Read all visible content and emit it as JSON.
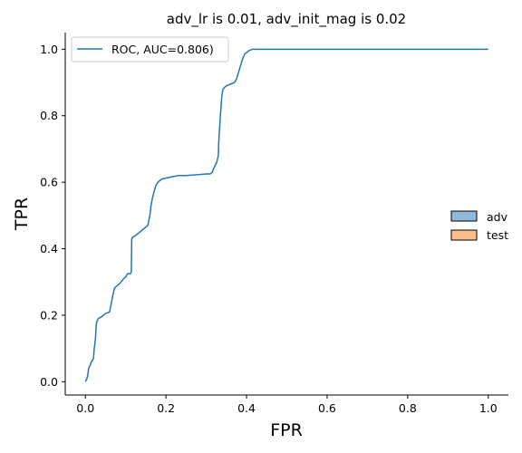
{
  "chart_data": {
    "type": "line",
    "title": "adv_lr is 0.01, adv_init_mag is 0.02",
    "xlabel": "FPR",
    "ylabel": "TPR",
    "xlim": [
      -0.05,
      1.05
    ],
    "ylim": [
      -0.04,
      1.05
    ],
    "xticks": [
      "0.0",
      "0.2",
      "0.4",
      "0.6",
      "0.8",
      "1.0"
    ],
    "yticks": [
      "0.0",
      "0.2",
      "0.4",
      "0.6",
      "0.8",
      "1.0"
    ],
    "grid": false,
    "series": [
      {
        "name": "ROC, AUC=0.806)",
        "color": "#1f77b4",
        "x": [
          0.0,
          0.002,
          0.004,
          0.006,
          0.008,
          0.012,
          0.015,
          0.02,
          0.022,
          0.025,
          0.027,
          0.028,
          0.032,
          0.04,
          0.05,
          0.06,
          0.065,
          0.068,
          0.07,
          0.072,
          0.075,
          0.085,
          0.095,
          0.1,
          0.105,
          0.112,
          0.114,
          0.115,
          0.118,
          0.125,
          0.135,
          0.145,
          0.155,
          0.16,
          0.163,
          0.166,
          0.17,
          0.175,
          0.18,
          0.19,
          0.21,
          0.23,
          0.25,
          0.27,
          0.3,
          0.31,
          0.315,
          0.318,
          0.322,
          0.326,
          0.328,
          0.33,
          0.331,
          0.333,
          0.335,
          0.337,
          0.338,
          0.34,
          0.342,
          0.345,
          0.35,
          0.36,
          0.37,
          0.375,
          0.38,
          0.385,
          0.39,
          0.395,
          0.4,
          0.405,
          0.41,
          0.415,
          0.42,
          0.43,
          0.45,
          0.5,
          1.0
        ],
        "y": [
          0.0,
          0.005,
          0.01,
          0.02,
          0.04,
          0.05,
          0.06,
          0.07,
          0.1,
          0.13,
          0.17,
          0.18,
          0.19,
          0.195,
          0.205,
          0.21,
          0.24,
          0.26,
          0.27,
          0.28,
          0.285,
          0.295,
          0.31,
          0.315,
          0.325,
          0.325,
          0.33,
          0.43,
          0.435,
          0.44,
          0.45,
          0.46,
          0.47,
          0.5,
          0.53,
          0.55,
          0.57,
          0.59,
          0.6,
          0.61,
          0.615,
          0.62,
          0.62,
          0.622,
          0.625,
          0.625,
          0.63,
          0.64,
          0.65,
          0.66,
          0.67,
          0.68,
          0.72,
          0.76,
          0.8,
          0.83,
          0.85,
          0.87,
          0.88,
          0.885,
          0.89,
          0.895,
          0.9,
          0.91,
          0.93,
          0.95,
          0.97,
          0.985,
          0.99,
          0.995,
          0.998,
          1.0,
          1.0,
          1.0,
          1.0,
          1.0,
          1.0
        ]
      }
    ],
    "legend_main": {
      "placement": "upper-left",
      "entries": [
        {
          "label": "ROC, AUC=0.806)",
          "color": "#1f77b4"
        }
      ]
    },
    "legend_side": {
      "placement": "right",
      "entries": [
        {
          "label": "adv",
          "color": "#8fb9dc"
        },
        {
          "label": "test",
          "color": "#fdbe87"
        }
      ]
    }
  }
}
